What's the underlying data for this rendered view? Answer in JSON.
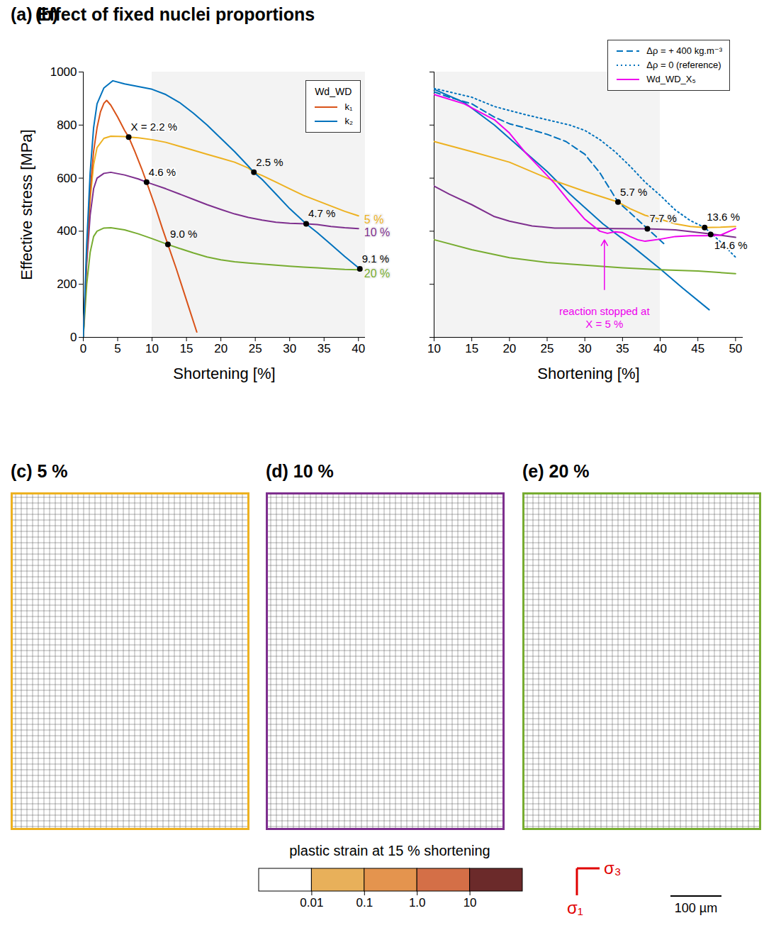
{
  "chart_data": [
    {
      "type": "line",
      "title": "(a) Effect of fixed nuclei proportions",
      "xlabel": "Shortening [%]",
      "ylabel": "Effective stress [MPa]",
      "xlim": [
        0,
        41
      ],
      "ylim": [
        0,
        1000
      ],
      "xticks": [
        0,
        5,
        10,
        15,
        20,
        25,
        30,
        35,
        40
      ],
      "yticks": [
        0,
        200,
        400,
        600,
        800,
        1000
      ],
      "grid": false,
      "legend": "top-right",
      "legend_title": "Wd_WD",
      "shaded": [
        10,
        41
      ],
      "series": [
        {
          "name": "k₁",
          "color": "#d95319",
          "line_style": "solid",
          "x": [
            0,
            0.5,
            1,
            1.5,
            2,
            2.5,
            3,
            3.4,
            4,
            5,
            6,
            6.6,
            7.5,
            8.5,
            9.2,
            10.5,
            11.5,
            12.3,
            13.5,
            14.5,
            15.5,
            16.5
          ],
          "values": [
            0,
            300,
            550,
            700,
            790,
            850,
            882,
            893,
            875,
            830,
            780,
            755,
            700,
            635,
            585,
            490,
            410,
            350,
            260,
            180,
            100,
            20
          ]
        },
        {
          "name": "k₂",
          "color": "#0072bd",
          "line_style": "solid",
          "x": [
            0,
            0.5,
            1,
            1.5,
            2,
            3,
            4.3,
            6,
            8,
            10,
            12,
            14,
            16,
            18,
            20,
            22,
            24,
            24.8,
            26,
            28,
            30,
            32.4,
            34,
            36,
            38,
            40.2
          ],
          "values": [
            0,
            350,
            620,
            790,
            880,
            940,
            967,
            955,
            945,
            935,
            915,
            885,
            845,
            800,
            750,
            700,
            645,
            622,
            595,
            540,
            485,
            428,
            395,
            350,
            305,
            258
          ]
        }
      ],
      "labeled_series": [
        {
          "name": "5 %",
          "color": "#edb120",
          "x": [
            0,
            0.5,
            1,
            1.5,
            2,
            3,
            4,
            6,
            6.6,
            8,
            10,
            12,
            14,
            16,
            18,
            20,
            22,
            24,
            24.8,
            26,
            28,
            30,
            32,
            34,
            36,
            38,
            40
          ],
          "values": [
            0,
            300,
            520,
            650,
            715,
            750,
            758,
            757,
            755,
            752,
            745,
            735,
            720,
            705,
            690,
            675,
            660,
            638,
            622,
            610,
            585,
            560,
            535,
            515,
            495,
            475,
            458
          ]
        },
        {
          "name": "10 %",
          "color": "#7e2f8e",
          "x": [
            0,
            0.5,
            1,
            1.5,
            2,
            3,
            4,
            6,
            8,
            9.2,
            10,
            12,
            14,
            16,
            18,
            20,
            22,
            24,
            26,
            28,
            30,
            32.4,
            34,
            36,
            38,
            40
          ],
          "values": [
            0,
            280,
            460,
            560,
            600,
            618,
            622,
            612,
            597,
            585,
            578,
            560,
            540,
            520,
            500,
            482,
            465,
            452,
            442,
            434,
            430,
            428,
            425,
            418,
            413,
            410
          ]
        },
        {
          "name": "20 %",
          "color": "#77ac30",
          "x": [
            0,
            0.5,
            1,
            1.5,
            2,
            3,
            4,
            6,
            8,
            10,
            12.3,
            14,
            16,
            18,
            20,
            22,
            24,
            26,
            28,
            30,
            32,
            34,
            36,
            38,
            40
          ],
          "values": [
            0,
            200,
            320,
            380,
            400,
            412,
            413,
            405,
            390,
            372,
            350,
            335,
            318,
            303,
            292,
            285,
            280,
            276,
            272,
            268,
            265,
            262,
            259,
            256,
            255
          ]
        }
      ],
      "annotations": [
        {
          "x": 6.6,
          "y": 755,
          "text": "X = 2.2 %"
        },
        {
          "x": 9.2,
          "y": 585,
          "text": "4.6 %"
        },
        {
          "x": 12.3,
          "y": 350,
          "text": "9.0 %"
        },
        {
          "x": 24.8,
          "y": 622,
          "text": "2.5 %"
        },
        {
          "x": 32.4,
          "y": 428,
          "text": "4.7 %"
        },
        {
          "x": 40.2,
          "y": 258,
          "text": "9.1 %"
        }
      ]
    },
    {
      "type": "line",
      "title": "(b)",
      "xlabel": "Shortening [%]",
      "xlim": [
        10,
        51
      ],
      "ylim": [
        0,
        1000
      ],
      "xticks": [
        10,
        15,
        20,
        25,
        30,
        35,
        40,
        45,
        50
      ],
      "yticks": [
        0,
        200,
        400,
        600,
        800,
        1000
      ],
      "tick_labels": "x",
      "grid": false,
      "legend": "top-right",
      "shaded": [
        10,
        40
      ],
      "series": [
        {
          "name": "Δρ = + 400 kg.m⁻³",
          "color": "#0072bd",
          "line_style": "dashed",
          "x": [
            10,
            12,
            15,
            18,
            20,
            22,
            25,
            27.5,
            30,
            32,
            34.4,
            36,
            38.3,
            40.6
          ],
          "values": [
            925,
            905,
            880,
            830,
            805,
            790,
            765,
            738,
            690,
            620,
            510,
            470,
            410,
            350
          ]
        },
        {
          "name": "Δρ = 0 (reference)",
          "color": "#0072bd",
          "line_style": "dotted",
          "x": [
            10,
            12,
            15,
            18,
            20,
            22,
            25,
            28,
            30,
            32,
            34,
            36,
            38,
            40,
            42,
            44,
            45.9,
            48,
            50
          ],
          "values": [
            938,
            925,
            905,
            870,
            855,
            840,
            820,
            800,
            780,
            745,
            700,
            645,
            585,
            535,
            480,
            440,
            414,
            360,
            302
          ]
        },
        {
          "name": "Wd_WD_X₅",
          "color": "#ee00ee",
          "line_style": "solid",
          "x": [
            10,
            14,
            18,
            20,
            22,
            24,
            26,
            28,
            30,
            32,
            33,
            34,
            35,
            36,
            37,
            38,
            40,
            42,
            44,
            46,
            48,
            50
          ],
          "values": [
            915,
            880,
            820,
            770,
            700,
            640,
            580,
            510,
            445,
            400,
            392,
            398,
            395,
            380,
            368,
            362,
            370,
            380,
            383,
            383,
            385,
            410
          ]
        }
      ],
      "other_series": [
        {
          "color": "#0072bd",
          "line_style": "solid",
          "x": [
            10,
            14,
            18,
            22,
            25,
            28,
            32.4,
            36,
            40,
            43,
            46.5
          ],
          "values": [
            935,
            885,
            800,
            700,
            625,
            540,
            428,
            350,
            258,
            185,
            104
          ]
        },
        {
          "color": "#edb120",
          "line_style": "solid",
          "x": [
            10,
            15,
            20,
            25,
            30,
            34.4,
            36,
            38,
            40,
            42,
            44,
            45.9,
            48,
            50
          ],
          "values": [
            738,
            700,
            660,
            600,
            550,
            510,
            485,
            460,
            445,
            428,
            418,
            414,
            415,
            418
          ]
        },
        {
          "color": "#7e2f8e",
          "line_style": "solid",
          "x": [
            10,
            12,
            15,
            18,
            20,
            23,
            26,
            30,
            34,
            38.3,
            42,
            46.7,
            50
          ],
          "values": [
            570,
            540,
            500,
            455,
            438,
            420,
            412,
            412,
            410,
            409,
            405,
            390,
            377
          ]
        },
        {
          "color": "#77ac30",
          "line_style": "solid",
          "x": [
            10,
            15,
            20,
            25,
            30,
            35,
            40,
            45,
            50
          ],
          "values": [
            368,
            330,
            300,
            282,
            272,
            262,
            255,
            250,
            240
          ]
        }
      ],
      "annotations": [
        {
          "x": 34.4,
          "y": 510,
          "text": "5.7 %"
        },
        {
          "x": 38.3,
          "y": 409,
          "text": "7.7 %"
        },
        {
          "x": 45.9,
          "y": 414,
          "text": "13.6 %"
        },
        {
          "x": 46.7,
          "y": 388,
          "text": "14.6 %"
        }
      ],
      "arrow_annotations": [
        {
          "x": 32.6,
          "y": 392,
          "text": [
            "reaction stopped at",
            "X = 5 %"
          ],
          "color": "#ee00ee"
        }
      ]
    }
  ],
  "panels": [
    {
      "title": "(c) 5 %",
      "color": "#edb120"
    },
    {
      "title": "(d) 10 %",
      "color": "#7e2f8e"
    },
    {
      "title": "(e) 20 %",
      "color": "#77ac30"
    }
  ],
  "colorbar": {
    "title": "plastic strain at 15 % shortening",
    "log": true,
    "xlim": [
      0.001,
      100
    ],
    "bins": [
      0.001,
      0.01,
      0.1,
      1,
      10,
      100
    ],
    "colors": [
      "#ffffff",
      "#e8b05a",
      "#e4944e",
      "#d46f47",
      "#6b2a2a"
    ],
    "xticks": [
      0.01,
      0.1,
      {
        "value": 1,
        "label": "1.0"
      },
      10
    ]
  },
  "stress_axes": [
    "σ₃",
    "σ₁"
  ],
  "scale_bar": "100 µm"
}
